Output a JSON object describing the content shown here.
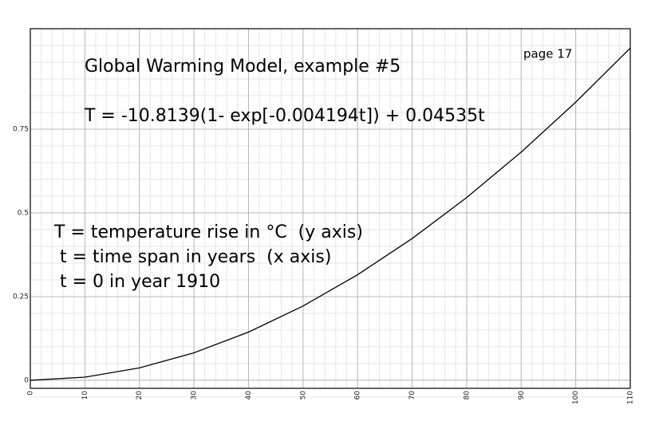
{
  "chart_data": {
    "type": "line",
    "title": "Global Warming Model, example #5",
    "subtitle": "T = -10.8139(1- exp[-0.004194t]) + 0.04535t",
    "page_label": "page 17",
    "annotations": [
      "T = temperature rise in °C  (y axis)",
      " t = time span in years  (x axis)",
      " t = 0 in year 1910"
    ],
    "x": [
      0,
      10,
      20,
      30,
      40,
      50,
      60,
      70,
      80,
      90,
      100,
      110
    ],
    "series": [
      {
        "color": "#000000",
        "values": [
          0,
          0.0093,
          0.0369,
          0.082,
          0.1439,
          0.2218,
          0.3152,
          0.4233,
          0.5457,
          0.6816,
          0.8306,
          0.9921
        ]
      }
    ],
    "xlim": [
      0,
      110
    ],
    "xticks": [
      0,
      10,
      20,
      30,
      40,
      50,
      60,
      70,
      80,
      90,
      100,
      110
    ],
    "ylim": [
      -0.024,
      1.05
    ],
    "yticks": [
      0,
      0.25,
      0.5,
      0.75
    ],
    "grid": true
  }
}
